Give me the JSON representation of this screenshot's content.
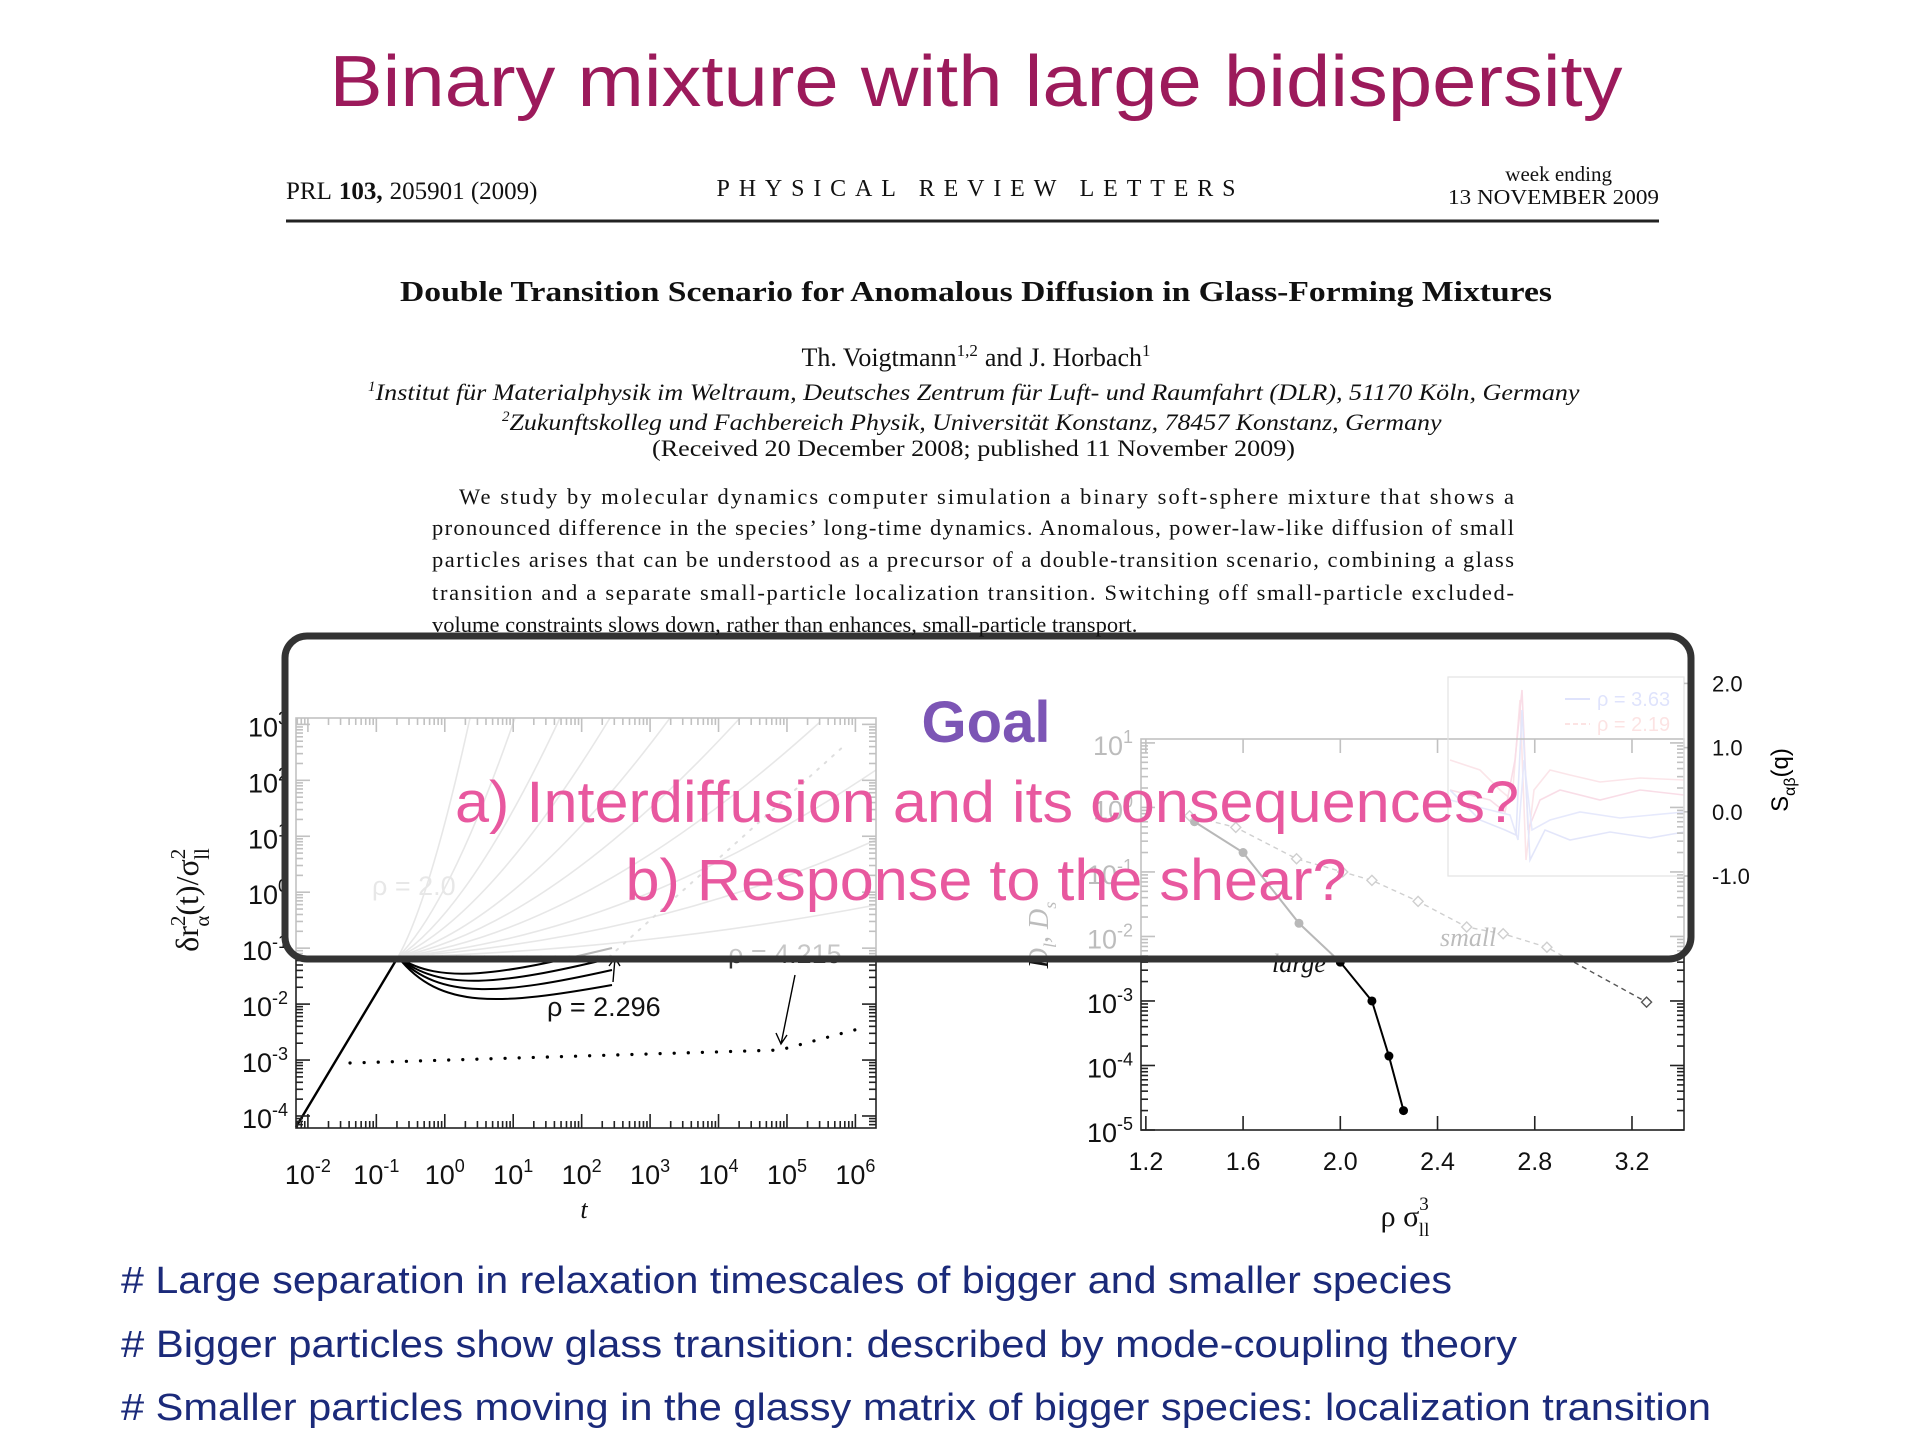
{
  "slide": {
    "title": "Binary mixture with large bidispersity",
    "bullets": [
      "# Large separation in relaxation timescales of bigger and smaller species",
      "# Bigger particles show glass transition: described by mode-coupling theory",
      "# Smaller particles moving in the glassy matrix of bigger species: localization transition"
    ]
  },
  "paper": {
    "prl": "PRL",
    "volume": "103,",
    "pages": "205901 (2009)",
    "journal": "PHYSICAL REVIEW LETTERS",
    "week_label": "week ending",
    "date": "13 NOVEMBER 2009",
    "title": "Double Transition Scenario for Anomalous Diffusion in Glass-Forming Mixtures",
    "authors": [
      {
        "name": "Th. Voigtmann",
        "aff": "1,2"
      },
      {
        "name": "J. Horbach",
        "aff": "1"
      }
    ],
    "and": "and",
    "affiliations": [
      {
        "mark": "1",
        "text": "Institut für Materialphysik im Weltraum, Deutsches Zentrum für Luft- und Raumfahrt (DLR), 51170 Köln, Germany"
      },
      {
        "mark": "2",
        "text": "Zukunftskolleg und Fachbereich Physik, Universität Konstanz, 78457 Konstanz, Germany"
      }
    ],
    "received": "(Received 20 December 2008; published 11 November 2009)",
    "abstract_lines": [
      "We study by molecular dynamics computer simulation a binary soft-sphere mixture that shows a",
      "pronounced difference in the species’ long-time dynamics. Anomalous, power-law-like diffusion of small",
      "particles arises that can be understood as a precursor of a double-transition scenario, combining a glass",
      "transition and a separate small-particle localization transition. Switching off small-particle excluded-",
      "volume constraints slows down, rather than enhances, small-particle transport."
    ]
  },
  "overlay": {
    "goal": "Goal",
    "lines": [
      "a) Interdiffusion and its consequences?",
      "b) Response to the shear?"
    ]
  },
  "chart_data": [
    {
      "type": "line",
      "x_label": "t",
      "y_label_parts": [
        "δr",
        "2",
        "α",
        "(t)/σ",
        "2",
        "ll"
      ],
      "xlog": true,
      "ylog": true,
      "xlim": [
        0.0067,
        2000000
      ],
      "ylim": [
        6.1e-05,
        1300
      ],
      "xticks": [
        {
          "value": 0.01,
          "label": "10",
          "exponent": "-2"
        },
        {
          "value": 0.1,
          "label": "10",
          "exponent": "-1"
        },
        {
          "value": 1,
          "label": "10",
          "exponent": "0"
        },
        {
          "value": 10,
          "label": "10",
          "exponent": "1"
        },
        {
          "value": 100,
          "label": "10",
          "exponent": "2"
        },
        {
          "value": 1000,
          "label": "10",
          "exponent": "3"
        },
        {
          "value": 10000,
          "label": "10",
          "exponent": "4"
        },
        {
          "value": 100000,
          "label": "10",
          "exponent": "5"
        },
        {
          "value": 1000000,
          "label": "10",
          "exponent": "6"
        }
      ],
      "yticks": [
        {
          "value": 1000,
          "label": "10",
          "exponent": "3"
        },
        {
          "value": 100,
          "label": "10",
          "exponent": "2"
        },
        {
          "value": 10,
          "label": "10",
          "exponent": "1"
        },
        {
          "value": 1,
          "label": "10",
          "exponent": "0"
        },
        {
          "value": 0.1,
          "label": "10",
          "exponent": "-1"
        },
        {
          "value": 0.01,
          "label": "10",
          "exponent": "-2"
        },
        {
          "value": 0.001,
          "label": "10",
          "exponent": "-3"
        },
        {
          "value": 0.0001,
          "label": "10",
          "exponent": "-4"
        }
      ],
      "annotations": [
        "ρ = 2.0",
        "ρ = 4.215",
        "ρ = 2.296"
      ]
    },
    {
      "type": "line",
      "x_label_parts": [
        "ρ σ",
        "3",
        "ll"
      ],
      "y_label_parts": [
        "D",
        "l",
        ", D",
        "s"
      ],
      "ylog": true,
      "xlim": [
        1.18,
        3.414
      ],
      "ylim": [
        1e-05,
        11.5
      ],
      "xticks": [
        1.2,
        1.6,
        {
          "value": 2,
          "label": "2.0"
        },
        2.4,
        2.8,
        3.2
      ],
      "yticks": [
        {
          "value": 10,
          "label": "10",
          "exponent": "1"
        },
        {
          "value": 1,
          "label": "10",
          "exponent": "0"
        },
        {
          "value": 0.1,
          "label": "10",
          "exponent": "-1"
        },
        {
          "value": 0.01,
          "label": "10",
          "exponent": "-2"
        },
        {
          "value": 0.001,
          "label": "10",
          "exponent": "-3"
        },
        {
          "value": 0.0001,
          "label": "10",
          "exponent": "-4"
        },
        {
          "value": 1e-05,
          "label": "10",
          "exponent": "-5"
        }
      ],
      "series": [
        {
          "name": "large",
          "color": "#000000",
          "x": [
            1.4,
            1.6,
            1.83,
            2.0,
            2.13,
            2.2,
            2.26
          ],
          "values": [
            0.6,
            0.2,
            0.016,
            0.004,
            0.001,
            0.00014,
            2e-05
          ]
        },
        {
          "name": "small",
          "color": "#555555",
          "x": [
            1.38,
            1.57,
            1.82,
            2.01,
            2.13,
            2.32,
            2.52,
            2.67,
            2.85,
            3.26
          ],
          "values": [
            0.74,
            0.49,
            0.16,
            0.1,
            0.074,
            0.035,
            0.014,
            0.011,
            0.0068,
            0.00096
          ]
        }
      ],
      "inset": {
        "legend": [
          {
            "name": "ρ = 3.63",
            "color": "#8c9cf5"
          },
          {
            "name": "ρ = 2.19",
            "color": "#f59a9a"
          }
        ],
        "y2lim": [
          -1.0,
          2.1
        ],
        "y2ticks": [
          {
            "value": 2,
            "label": "2.0"
          },
          {
            "value": 1,
            "label": "1.0"
          },
          {
            "value": 0,
            "label": "0.0"
          },
          {
            "value": -1,
            "label": "-1.0"
          }
        ],
        "y2_label_parts": [
          "S",
          "αβ",
          "(q)"
        ]
      }
    }
  ]
}
